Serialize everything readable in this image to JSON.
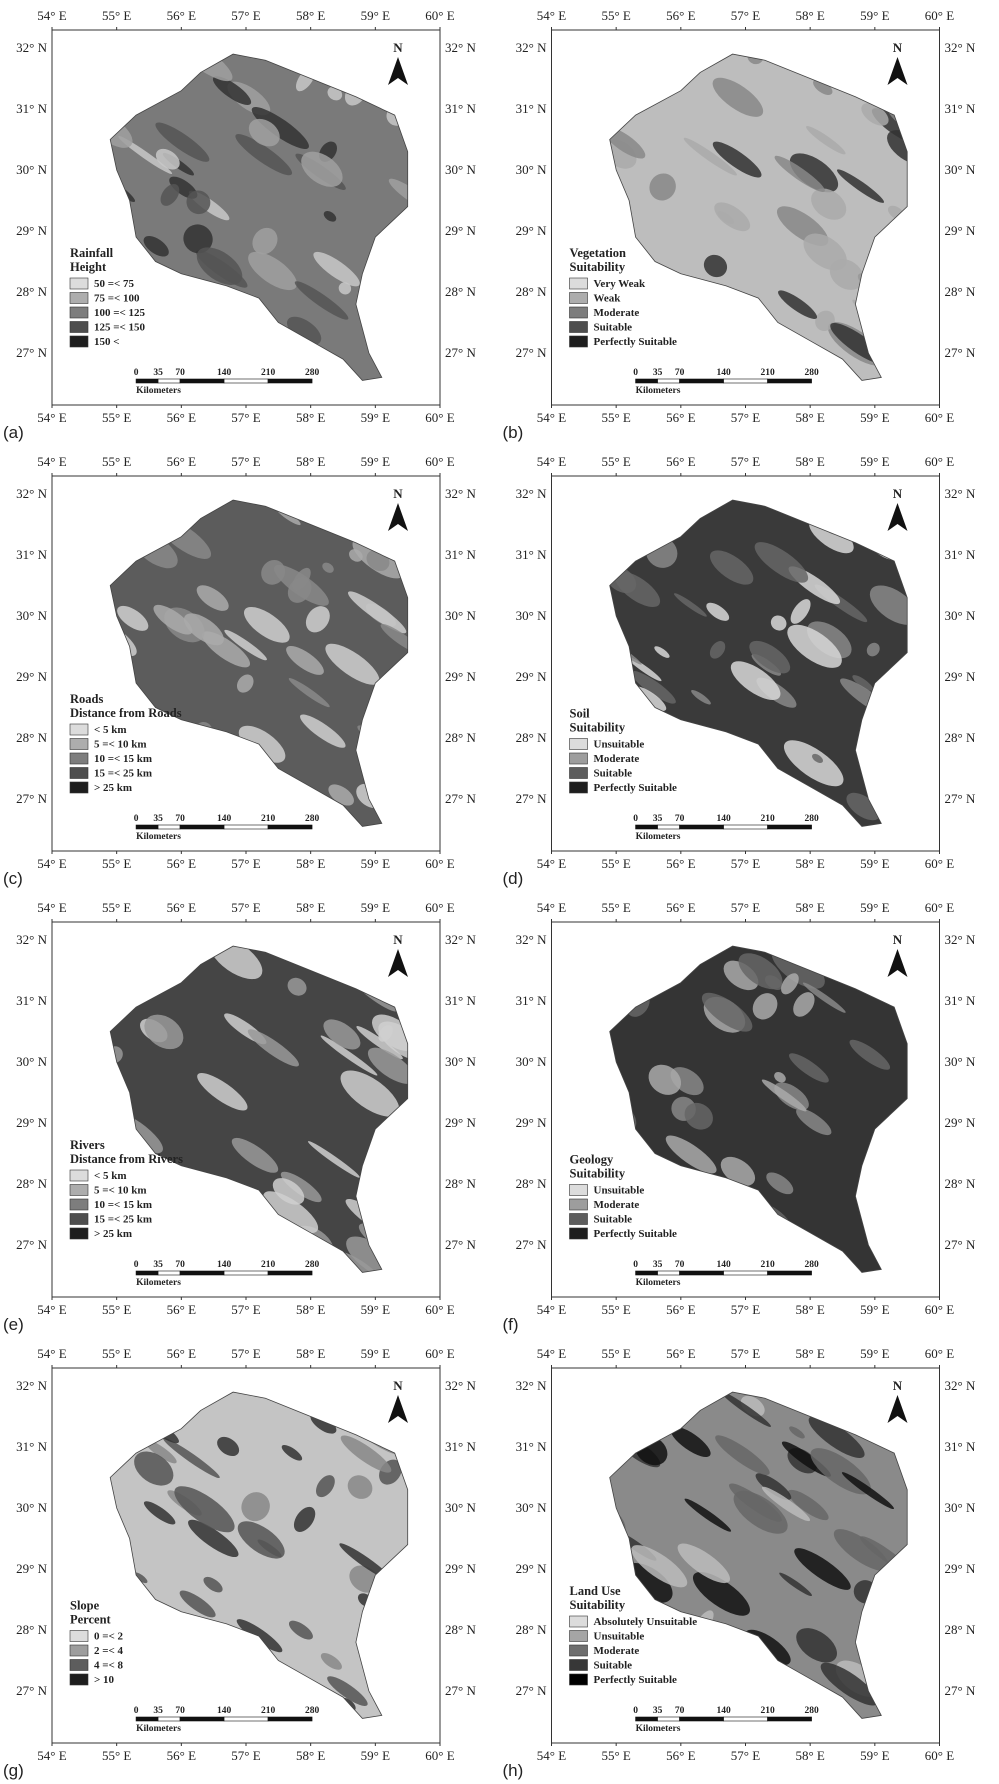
{
  "lon_labels": [
    "54° E",
    "55° E",
    "56° E",
    "57° E",
    "58° E",
    "59° E",
    "60° E"
  ],
  "lat_labels": [
    "32° N",
    "31° N",
    "30° N",
    "29° N",
    "28° N",
    "27° N"
  ],
  "north": "N",
  "scale_labels": [
    "0",
    "35",
    "70",
    "140",
    "210",
    "280"
  ],
  "scale_unit": "Kilometers",
  "panels": [
    {
      "label": "(a)",
      "legend_title": [
        "Rainfall",
        "Height"
      ],
      "legend_items": [
        "50 =< 75",
        "75 =< 100",
        "100 =< 125",
        "125 =< 150",
        "150 <"
      ]
    },
    {
      "label": "(b)",
      "legend_title": [
        "Vegetation",
        "Suitability"
      ],
      "legend_items": [
        "Very Weak",
        "Weak",
        "Moderate",
        "Suitable",
        "Perfectly Suitable"
      ]
    },
    {
      "label": "(c)",
      "legend_title": [
        "Roads",
        "Distance from Roads"
      ],
      "legend_items": [
        "< 5 km",
        "5 =< 10 km",
        "10 =< 15 km",
        "15 =< 25 km",
        "> 25 km"
      ]
    },
    {
      "label": "(d)",
      "legend_title": [
        "Soil",
        "Suitability"
      ],
      "legend_items": [
        "Unsuitable",
        "Moderate",
        "Suitable",
        "Perfectly Suitable"
      ]
    },
    {
      "label": "(e)",
      "legend_title": [
        "Rivers",
        "Distance from Rivers"
      ],
      "legend_items": [
        "< 5 km",
        "5 =< 10 km",
        "10 =< 15 km",
        "15 =< 25 km",
        "> 25 km"
      ]
    },
    {
      "label": "(f)",
      "legend_title": [
        "Geology",
        "Suitability"
      ],
      "legend_items": [
        "Unsuitable",
        "Moderate",
        "Suitable",
        "Perfectly Suitable"
      ]
    },
    {
      "label": "(g)",
      "legend_title": [
        "Slope",
        "Percent"
      ],
      "legend_items": [
        "0 =< 2",
        "2 =< 4",
        "4 =< 8",
        "> 10"
      ]
    },
    {
      "label": "(h)",
      "legend_title": [
        "Land Use",
        "Suitability"
      ],
      "legend_items": [
        "Absolutely Unsuitable",
        "Unsuitable",
        "Moderate",
        "Suitable",
        "Perfectly Suitable"
      ]
    }
  ]
}
